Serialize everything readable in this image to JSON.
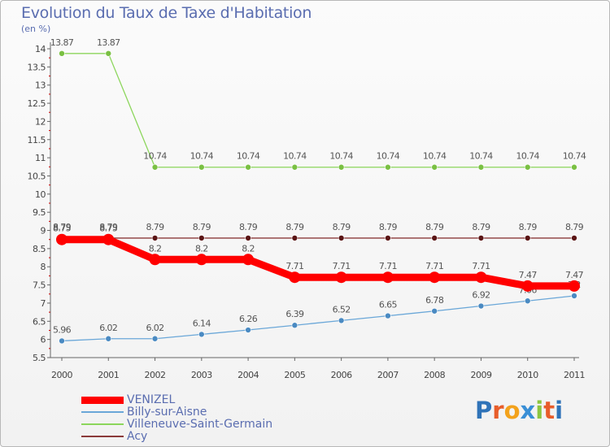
{
  "title": "Evolution du Taux de Taxe d'Habitation",
  "ylabel": "(en %)",
  "logo": {
    "letters": [
      {
        "ch": "P",
        "color": "#2f73b8"
      },
      {
        "ch": "r",
        "color": "#e85d2a"
      },
      {
        "ch": "o",
        "color": "#f3a21c"
      },
      {
        "ch": "x",
        "color": "#3a8fd6"
      },
      {
        "ch": "i",
        "color": "#8cc63f"
      },
      {
        "ch": "t",
        "color": "#e85d2a"
      },
      {
        "ch": "i",
        "color": "#2f73b8"
      }
    ]
  },
  "chart_data": {
    "type": "line",
    "title": "Evolution du Taux de Taxe d'Habitation",
    "xlabel": "",
    "ylabel": "(en %)",
    "categories": [
      "2000",
      "2001",
      "2002",
      "2003",
      "2004",
      "2005",
      "2006",
      "2007",
      "2008",
      "2009",
      "2010",
      "2011"
    ],
    "ylim": [
      5.5,
      14
    ],
    "yticks": [
      "5.5",
      "6",
      "6.5",
      "7",
      "7.5",
      "8",
      "8.5",
      "9",
      "9.5",
      "10",
      "10.5",
      "11",
      "11.5",
      "12",
      "12.5",
      "13",
      "13.5",
      "14"
    ],
    "grid": false,
    "legend_position": "bottom-left",
    "series": [
      {
        "name": "Villeneuve-Saint-Germain",
        "color": "#8cd65c",
        "marker": "#7ac043",
        "values": [
          13.87,
          13.87,
          10.74,
          10.74,
          10.74,
          10.74,
          10.74,
          10.74,
          10.74,
          10.74,
          10.74,
          10.74
        ],
        "labels": [
          "13.87",
          "13.87",
          "10.74",
          "10.74",
          "10.74",
          "10.74",
          "10.74",
          "10.74",
          "10.74",
          "10.74",
          "10.74",
          "10.74"
        ]
      },
      {
        "name": "Acy",
        "color": "#8b3a3a",
        "marker": "#5a1515",
        "values": [
          8.79,
          8.79,
          8.79,
          8.79,
          8.79,
          8.79,
          8.79,
          8.79,
          8.79,
          8.79,
          8.79,
          8.79
        ],
        "labels": [
          "8.79",
          "8.79",
          "8.79",
          "8.79",
          "8.79",
          "8.79",
          "8.79",
          "8.79",
          "8.79",
          "8.79",
          "8.79",
          "8.79"
        ]
      },
      {
        "name": "Billy-sur-Aisne",
        "color": "#6aa7d8",
        "marker": "#4a8ac2",
        "values": [
          5.96,
          6.02,
          6.02,
          6.14,
          6.26,
          6.39,
          6.52,
          6.65,
          6.78,
          6.92,
          7.06,
          7.2
        ],
        "labels": [
          "5.96",
          "6.02",
          "6.02",
          "6.14",
          "6.26",
          "6.39",
          "6.52",
          "6.65",
          "6.78",
          "6.92",
          "7.06",
          "7.2"
        ]
      },
      {
        "name": "VENIZEL",
        "color": "#ff0000",
        "marker": "#ff0000",
        "values": [
          8.75,
          8.75,
          8.2,
          8.2,
          8.2,
          7.71,
          7.71,
          7.71,
          7.71,
          7.71,
          7.47,
          7.47
        ],
        "labels": [
          "8.75",
          "8.75",
          "8.2",
          "8.2",
          "8.2",
          "7.71",
          "7.71",
          "7.71",
          "7.71",
          "7.71",
          "7.47",
          "7.47"
        ]
      }
    ],
    "legend_order": [
      "VENIZEL",
      "Billy-sur-Aisne",
      "Villeneuve-Saint-Germain",
      "Acy"
    ]
  }
}
